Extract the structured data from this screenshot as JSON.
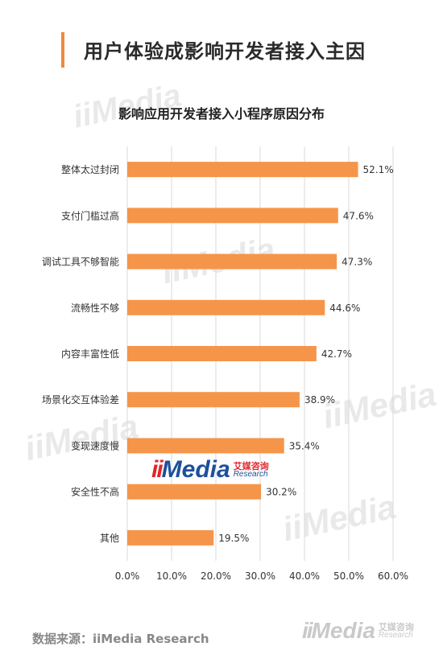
{
  "page": {
    "title": "用户体验成影响开发者接入主因",
    "source": "数据来源：iiMedia Research"
  },
  "logo": {
    "ii": "ii",
    "media": "Media",
    "cn": "艾媒咨询",
    "en": "Research"
  },
  "watermark": "iiMedia",
  "colors": {
    "bar": "#f5954a",
    "accent": "#f08a3c",
    "grid": "#d9d9d9"
  },
  "chart_data": {
    "type": "bar",
    "orientation": "horizontal",
    "title": "影响应用开发者接入小程序原因分布",
    "categories": [
      "整体太过封闭",
      "支付门槛过高",
      "调试工具不够智能",
      "流畅性不够",
      "内容丰富性低",
      "场景化交互体验差",
      "变现速度慢",
      "安全性不高",
      "其他"
    ],
    "values": [
      52.1,
      47.6,
      47.3,
      44.6,
      42.7,
      38.9,
      35.4,
      30.2,
      19.5
    ],
    "value_labels": [
      "52.1%",
      "47.6%",
      "47.3%",
      "44.6%",
      "42.7%",
      "38.9%",
      "35.4%",
      "30.2%",
      "19.5%"
    ],
    "xlim": [
      0,
      60
    ],
    "x_ticks": [
      0,
      10,
      20,
      30,
      40,
      50,
      60
    ],
    "x_tick_labels": [
      "0.0%",
      "10.0%",
      "20.0%",
      "30.0%",
      "40.0%",
      "50.0%",
      "60.0%"
    ],
    "grid": true,
    "legend": "none"
  }
}
